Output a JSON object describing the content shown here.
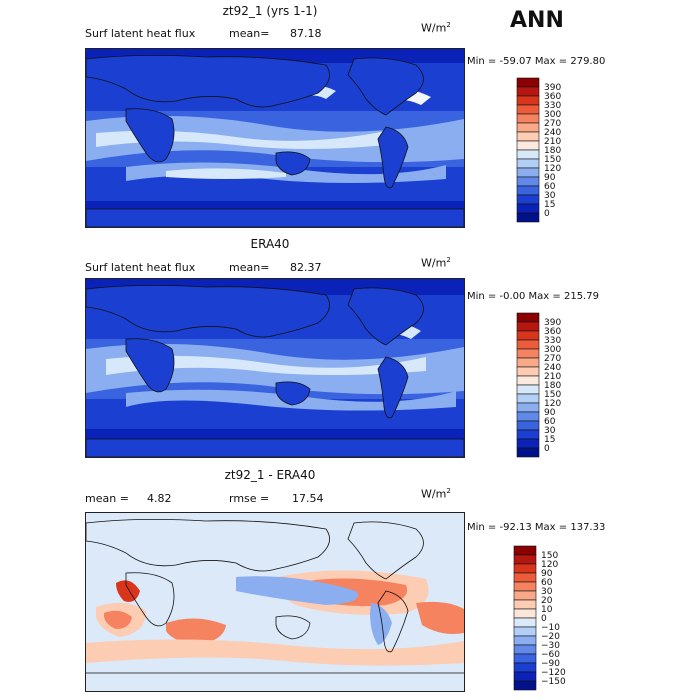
{
  "annotation": "ANN",
  "panels": [
    {
      "title": "zt92_1 (yrs 1-1)",
      "variable": "Surf latent heat flux",
      "stat_label": "mean=",
      "stat_value": "87.18",
      "unit": "W/m",
      "unit_exp": "2",
      "min_label": "Min = ",
      "min_value": "-59.07",
      "max_label": "Max = ",
      "max_value": "279.80",
      "colorbar": {
        "levels": [
          "390",
          "360",
          "330",
          "300",
          "270",
          "240",
          "210",
          "180",
          "150",
          "120",
          "90",
          "60",
          "30",
          "15",
          "0"
        ],
        "colors": [
          "#8b0000",
          "#b5160f",
          "#d9341c",
          "#ec5c3b",
          "#f5835f",
          "#f9a988",
          "#fcccb3",
          "#fbe9dd",
          "#d7e8fb",
          "#b3cff6",
          "#8aaef0",
          "#6189ea",
          "#3a63e0",
          "#1a3fd1",
          "#0b22b8",
          "#00118a"
        ]
      }
    },
    {
      "title": "ERA40",
      "variable": "Surf latent heat flux",
      "stat_label": "mean=",
      "stat_value": "82.37",
      "unit": "W/m",
      "unit_exp": "2",
      "min_label": "Min = ",
      "min_value": "-0.00",
      "max_label": "Max = ",
      "max_value": "215.79",
      "colorbar": {
        "levels": [
          "390",
          "360",
          "330",
          "300",
          "270",
          "240",
          "210",
          "180",
          "150",
          "120",
          "90",
          "60",
          "30",
          "15",
          "0"
        ],
        "colors": [
          "#8b0000",
          "#b5160f",
          "#d9341c",
          "#ec5c3b",
          "#f5835f",
          "#f9a988",
          "#fcccb3",
          "#fbe9dd",
          "#d7e8fb",
          "#b3cff6",
          "#8aaef0",
          "#6189ea",
          "#3a63e0",
          "#1a3fd1",
          "#0b22b8",
          "#00118a"
        ]
      }
    },
    {
      "title": "zt92_1 - ERA40",
      "mean_label": "mean = ",
      "mean_value": "4.82",
      "rmse_label": "rmse = ",
      "rmse_value": "17.54",
      "unit": "W/m",
      "unit_exp": "2",
      "min_label": "Min = ",
      "min_value": "-92.13",
      "max_label": "Max = ",
      "max_value": "137.33",
      "colorbar": {
        "levels": [
          "150",
          "120",
          "90",
          "60",
          "30",
          "20",
          "10",
          "0",
          "−10",
          "−20",
          "−30",
          "−60",
          "−90",
          "−120",
          "−150"
        ],
        "colors": [
          "#8b0000",
          "#b5160f",
          "#d9341c",
          "#ec5c3b",
          "#f5835f",
          "#f9a988",
          "#fcccb3",
          "#fbe6da",
          "#dbe9f9",
          "#b3cff6",
          "#8aaef0",
          "#6189ea",
          "#3a63e0",
          "#1a3fd1",
          "#0b22b8",
          "#00118a"
        ]
      }
    }
  ],
  "map_colors": {
    "deep": "#0b22b8",
    "mid": "#1a3fd1",
    "mid2": "#3a63e0",
    "light": "#8aaef0",
    "pale": "#d7e8fb",
    "white": "#f3f6fb",
    "diff_bg": "#dbe9f9",
    "diff_warm": "#f5835f",
    "diff_warm2": "#fcccb3",
    "diff_cool": "#8aaef0",
    "diff_hot": "#d9341c"
  }
}
